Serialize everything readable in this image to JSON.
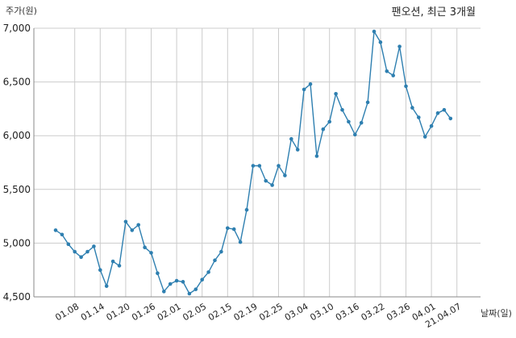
{
  "chart_data": {
    "type": "line",
    "title": "팬오션, 최근 3개월",
    "ylabel": "주가(원)",
    "xlabel": "날짜(일)",
    "ylim": [
      4500,
      7000
    ],
    "yticks": [
      4500,
      5000,
      5500,
      6000,
      6500,
      7000
    ],
    "ytick_labels": [
      "4,500",
      "5,000",
      "5,500",
      "6,000",
      "6,500",
      "7,000"
    ],
    "xtick_labels": [
      "01.08",
      "01.14",
      "01.20",
      "01.26",
      "02.01",
      "02.05",
      "02.15",
      "02.19",
      "02.25",
      "03.04",
      "03.10",
      "03.16",
      "03.22",
      "03.26",
      "04.01",
      "21.04.07"
    ],
    "xtick_index": [
      3,
      7,
      11,
      15,
      19,
      23,
      27,
      31,
      35,
      39,
      43,
      47,
      51,
      55,
      59,
      63
    ],
    "grid": true,
    "color": "#2e7fb0",
    "values": [
      5120,
      5080,
      4990,
      4920,
      4870,
      4920,
      4970,
      4750,
      4600,
      4830,
      4790,
      5200,
      5120,
      5170,
      4960,
      4910,
      4720,
      4550,
      4620,
      4650,
      4640,
      4530,
      4570,
      4660,
      4730,
      4840,
      4920,
      5140,
      5130,
      5010,
      5310,
      5720,
      5720,
      5580,
      5540,
      5720,
      5630,
      5970,
      5870,
      6430,
      6480,
      5810,
      6060,
      6130,
      6390,
      6240,
      6130,
      6010,
      6120,
      6310,
      6970,
      6870,
      6600,
      6560,
      6830,
      6460,
      6260,
      6170,
      5990,
      6090,
      6210,
      6240,
      6160
    ]
  }
}
